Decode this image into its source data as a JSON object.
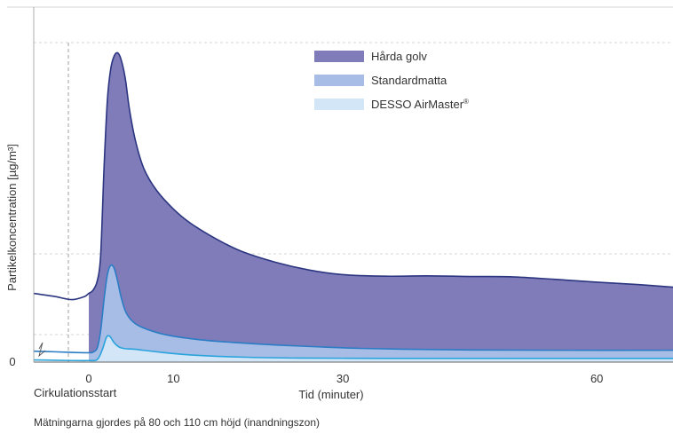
{
  "chart_data": {
    "type": "area",
    "title": "",
    "xlabel": "Tid (minuter)",
    "ylabel": "Partikelkoncentration [µg/m³]",
    "xlim": [
      -6.5,
      69
    ],
    "ylim": [
      0,
      100
    ],
    "x_ticks": [
      0,
      10,
      30,
      60
    ],
    "y_ticks": [
      0
    ],
    "annotations": {
      "start_label": "Cirkulationsstart",
      "footnote": "Mätningarna gjordes på 80 och 110 cm höjd (inandningszon)"
    },
    "legend": {
      "placement": "top-center"
    },
    "grid": "dashed horizontal reference lines",
    "series": [
      {
        "name": "Hårda golv",
        "color": "#7f7cb9",
        "line_color": "#2b3580",
        "x": [
          -6.5,
          -4,
          -2,
          -0.5,
          0,
          0.5,
          1,
          1.4,
          1.8,
          2.2,
          2.6,
          3.0,
          3.4,
          3.8,
          4.3,
          4.8,
          5.5,
          6.5,
          8,
          10,
          12,
          15,
          18,
          22,
          26,
          30,
          35,
          40,
          45,
          50,
          55,
          60,
          65,
          69
        ],
        "values": [
          22,
          21,
          20,
          21,
          22,
          23,
          26,
          34,
          62,
          84,
          94,
          98,
          99,
          97,
          91,
          81,
          71,
          62,
          55,
          49,
          44.5,
          39.5,
          35.5,
          32,
          29.5,
          28,
          27.5,
          27.6,
          27.4,
          27.3,
          26.5,
          25.6,
          24.8,
          24
        ]
      },
      {
        "name": "Standardmatta",
        "color": "#a8bde5",
        "line_color": "#2a7cc5",
        "x": [
          -6.5,
          -4,
          -2,
          0,
          0.5,
          1,
          1.4,
          1.8,
          2.2,
          2.6,
          3.0,
          3.4,
          3.8,
          4.3,
          5,
          6,
          8,
          10,
          13,
          17,
          22,
          27,
          32,
          38,
          45,
          55,
          69
        ],
        "values": [
          3.5,
          3.3,
          3.1,
          3.0,
          3.2,
          4.5,
          10,
          20,
          28,
          31,
          30,
          26,
          21,
          16.5,
          13.5,
          11.5,
          9.5,
          8.3,
          7.2,
          6.3,
          5.5,
          4.9,
          4.4,
          4.1,
          3.9,
          3.8,
          3.8
        ]
      },
      {
        "name": "DESSO AirMaster®",
        "color": "#d3e6f8",
        "line_color": "#29a3dc",
        "x": [
          -6.5,
          -4,
          -2,
          0,
          1,
          1.6,
          2.1,
          2.5,
          3.0,
          3.6,
          4.3,
          5.5,
          8,
          12,
          18,
          25,
          35,
          45,
          55,
          69
        ],
        "values": [
          0.7,
          0.6,
          0.5,
          0.5,
          0.8,
          4,
          8,
          8.2,
          6.2,
          4.8,
          4.3,
          4.1,
          3.3,
          2.3,
          1.6,
          1.3,
          1.2,
          1.2,
          1.2,
          1.2
        ]
      }
    ]
  }
}
